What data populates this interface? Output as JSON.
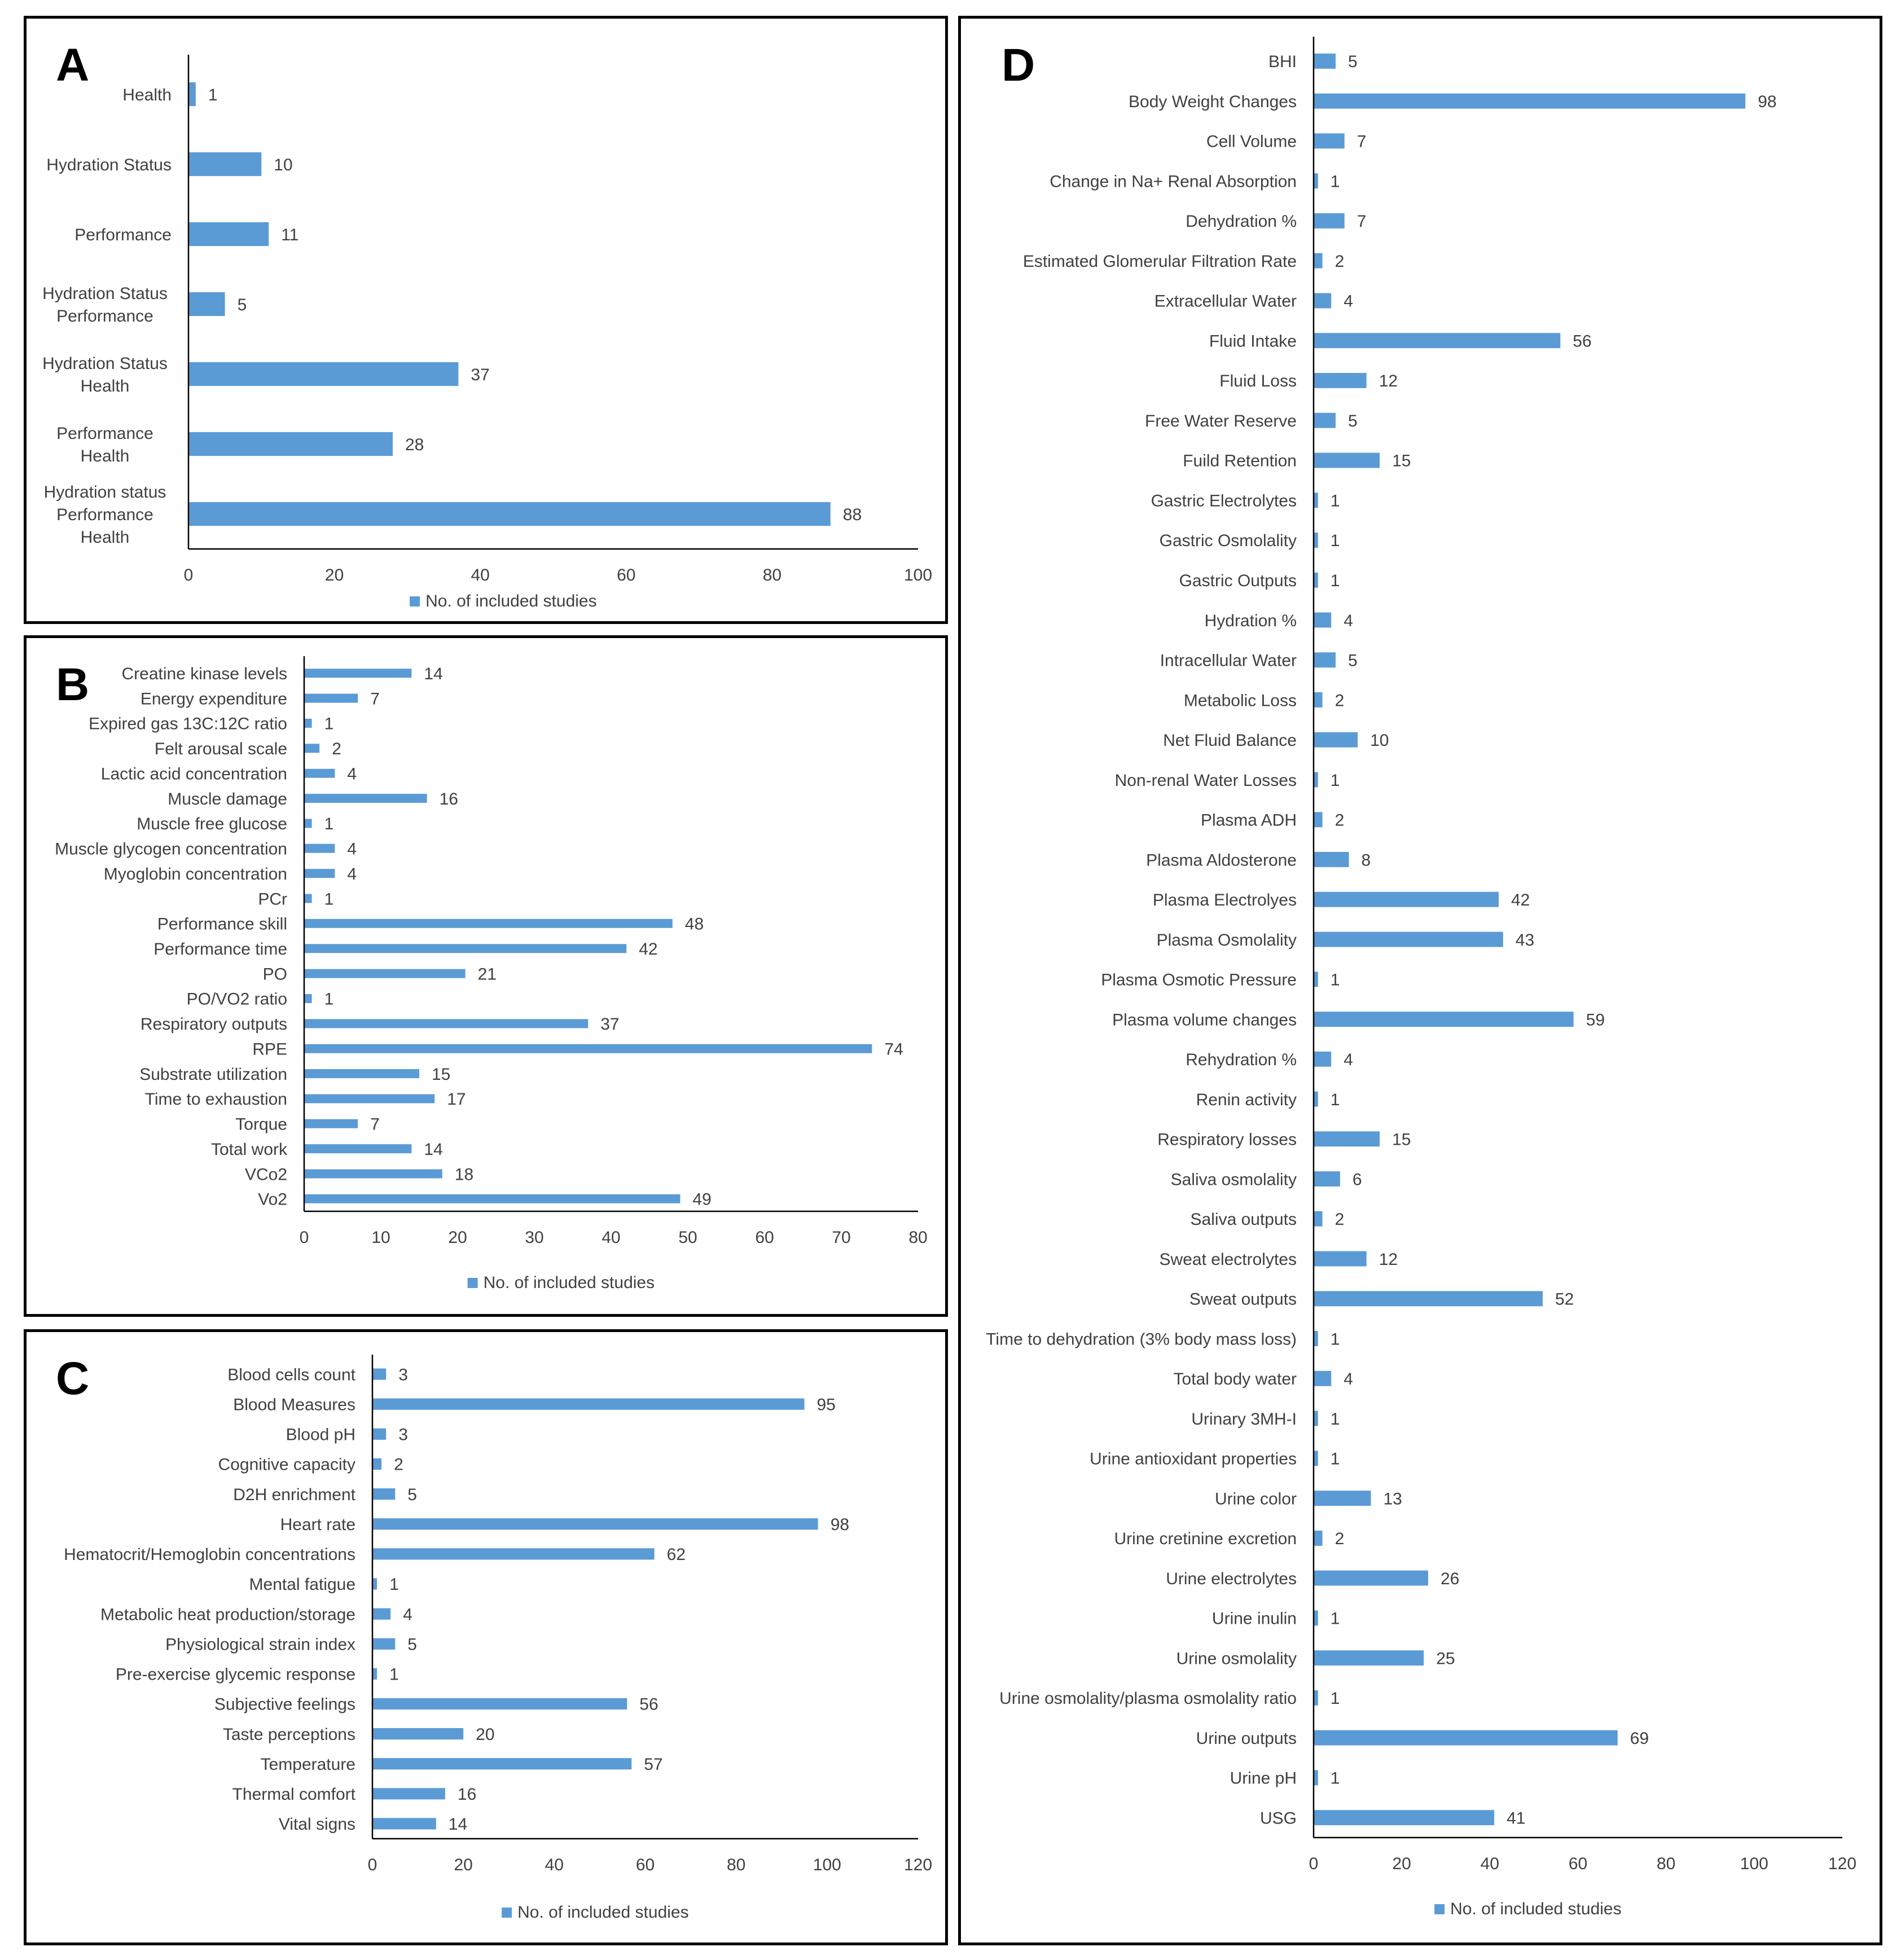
{
  "colors": {
    "bar": "#5b9bd5",
    "axis": "#000000",
    "text": "#404040"
  },
  "chart_data": [
    {
      "id": "A",
      "type": "bar",
      "orientation": "horizontal",
      "panel_label": "A",
      "categories": [
        "Health",
        "Hydration Status",
        "Performance",
        "Hydration Status\nPerformance",
        "Hydration Status\nHealth",
        "Performance\nHealth",
        "Hydration status\nPerformance\nHealth"
      ],
      "values": [
        1,
        10,
        11,
        5,
        37,
        28,
        88
      ],
      "xlim": [
        0,
        100
      ],
      "xticks": [
        0,
        20,
        40,
        60,
        80,
        100
      ],
      "legend": "No. of included studies",
      "legend_position": "bottom"
    },
    {
      "id": "B",
      "type": "bar",
      "orientation": "horizontal",
      "panel_label": "B",
      "categories": [
        "Creatine kinase levels",
        "Energy expenditure",
        "Expired gas 13C:12C ratio",
        "Felt arousal scale",
        "Lactic acid concentration",
        "Muscle damage",
        "Muscle free glucose",
        "Muscle glycogen concentration",
        "Myoglobin concentration",
        "PCr",
        "Performance skill",
        "Performance time",
        "PO",
        "PO/VO2 ratio",
        "Respiratory outputs",
        "RPE",
        "Substrate utilization",
        "Time to exhaustion",
        "Torque",
        "Total work",
        "VCo2",
        "Vo2"
      ],
      "values": [
        14,
        7,
        1,
        2,
        4,
        16,
        1,
        4,
        4,
        1,
        48,
        42,
        21,
        1,
        37,
        74,
        15,
        17,
        7,
        14,
        18,
        49
      ],
      "xlim": [
        0,
        80
      ],
      "xticks": [
        0,
        10,
        20,
        30,
        40,
        50,
        60,
        70,
        80
      ],
      "legend": "No. of included studies",
      "legend_position": "bottom"
    },
    {
      "id": "C",
      "type": "bar",
      "orientation": "horizontal",
      "panel_label": "C",
      "categories": [
        "Blood cells count",
        "Blood Measures",
        "Blood pH",
        "Cognitive capacity",
        "D2H enrichment",
        "Heart rate",
        "Hematocrit/Hemoglobin concentrations",
        "Mental fatigue",
        "Metabolic heat production/storage",
        "Physiological strain index",
        "Pre-exercise glycemic response",
        "Subjective feelings",
        "Taste perceptions",
        "Temperature",
        "Thermal comfort",
        "Vital signs"
      ],
      "values": [
        3,
        95,
        3,
        2,
        5,
        98,
        62,
        1,
        4,
        5,
        1,
        56,
        20,
        57,
        16,
        14
      ],
      "xlim": [
        0,
        120
      ],
      "xticks": [
        0,
        20,
        40,
        60,
        80,
        100,
        120
      ],
      "legend": "No. of included studies",
      "legend_position": "bottom"
    },
    {
      "id": "D",
      "type": "bar",
      "orientation": "horizontal",
      "panel_label": "D",
      "categories": [
        "BHI",
        "Body Weight Changes",
        "Cell Volume",
        "Change in Na+ Renal Absorption",
        "Dehydration %",
        "Estimated Glomerular Filtration Rate",
        "Extracellular Water",
        "Fluid Intake",
        "Fluid Loss",
        "Free Water Reserve",
        "Fuild Retention",
        "Gastric Electrolytes",
        "Gastric Osmolality",
        "Gastric Outputs",
        "Hydration %",
        "Intracellular Water",
        "Metabolic Loss",
        "Net Fluid Balance",
        "Non-renal Water Losses",
        "Plasma ADH",
        "Plasma Aldosterone",
        "Plasma Electrolyes",
        "Plasma Osmolality",
        "Plasma Osmotic Pressure",
        "Plasma volume changes",
        "Rehydration %",
        "Renin activity",
        "Respiratory losses",
        "Saliva osmolality",
        "Saliva outputs",
        "Sweat electrolytes",
        "Sweat outputs",
        "Time to dehydration (3% body mass loss)",
        "Total body water",
        "Urinary 3MH-I",
        "Urine antioxidant properties",
        "Urine color",
        "Urine cretinine excretion",
        "Urine electrolytes",
        "Urine inulin",
        "Urine osmolality",
        "Urine osmolality/plasma osmolality ratio",
        "Urine outputs",
        "Urine pH",
        "USG"
      ],
      "values": [
        5,
        98,
        7,
        1,
        7,
        2,
        4,
        56,
        12,
        5,
        15,
        1,
        1,
        1,
        4,
        5,
        2,
        10,
        1,
        2,
        8,
        42,
        43,
        1,
        59,
        4,
        1,
        15,
        6,
        2,
        12,
        52,
        1,
        4,
        1,
        1,
        13,
        2,
        26,
        1,
        25,
        1,
        69,
        1,
        41
      ],
      "xlim": [
        0,
        120
      ],
      "xticks": [
        0,
        20,
        40,
        60,
        80,
        100,
        120
      ],
      "legend": "No. of included studies",
      "legend_position": "bottom"
    }
  ]
}
